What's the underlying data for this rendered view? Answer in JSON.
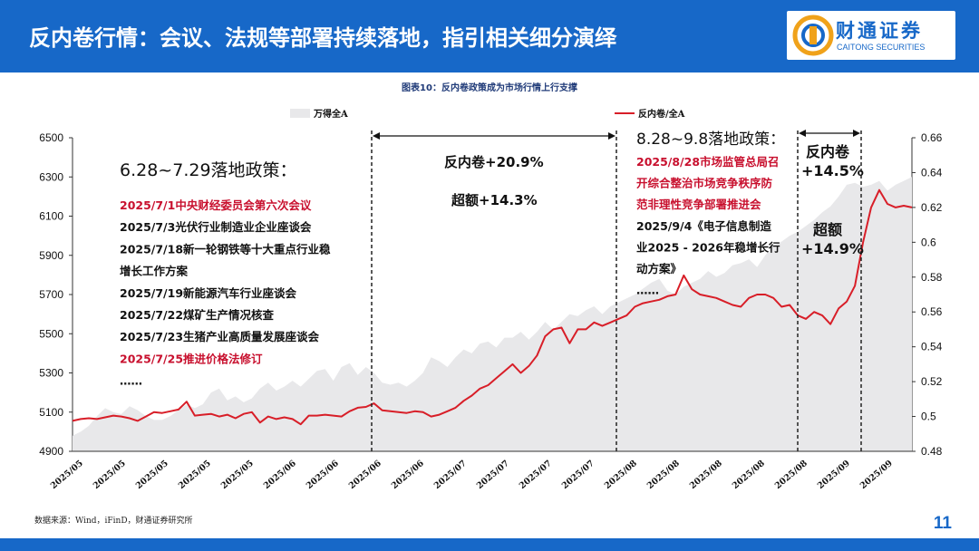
{
  "header": {
    "title": "反内卷行情：会议、法规等部署持续落地，指引相关细分演绎",
    "logo_name": "财通证券",
    "logo_sub": "CAITONG SECURITIES"
  },
  "figure_title": "图表10：反内卷政策成为市场行情上行支撑",
  "source": "数据来源：Wind，iFinD，财通证券研究所",
  "page_number": "11",
  "colors": {
    "brand": "#1768c8",
    "area": "#e8e8ea",
    "line": "#d81e28",
    "highlight": "#c8102e"
  },
  "annotations": {
    "left_title": "6.28~7.29落地政策：",
    "left_items": [
      {
        "text": "2025/7/1中央财经委员会第六次会议",
        "color": "red"
      },
      {
        "text": "2025/7/3光伏行业制造业企业座谈会",
        "color": "black"
      },
      {
        "text": "2025/7/18新一轮钢铁等十大重点行业稳",
        "color": "black"
      },
      {
        "text": "增长工作方案",
        "color": "black"
      },
      {
        "text": "2025/7/19新能源汽车行业座谈会",
        "color": "black"
      },
      {
        "text": "2025/7/22煤矿生产情况核查",
        "color": "black"
      },
      {
        "text": "2025/7/23生猪产业高质量发展座谈会",
        "color": "black"
      },
      {
        "text": "2025/7/25推进价格法修订",
        "color": "red"
      },
      {
        "text": "……",
        "color": "black"
      }
    ],
    "mid_label1": "反内卷+20.9%",
    "mid_label2": "超额+14.3%",
    "right_title": "8.28~9.8落地政策：",
    "right_items": [
      {
        "text": "2025/8/28市场监管总局召",
        "color": "red"
      },
      {
        "text": "开综合整治市场竞争秩序防",
        "color": "red"
      },
      {
        "text": "范非理性竞争部署推进会",
        "color": "red"
      },
      {
        "text": "2025/9/4《电子信息制造",
        "color": "black"
      },
      {
        "text": "业2025 - 2026年稳增长行",
        "color": "black"
      },
      {
        "text": "动方案》",
        "color": "black"
      },
      {
        "text": "……",
        "color": "black"
      }
    ],
    "far_label1": "反内卷",
    "far_label2": "+14.5%",
    "far_label3": "超额",
    "far_label4": "+14.9%"
  },
  "chart_data": {
    "type": "area+line",
    "legend": [
      "万得全A",
      "反内卷/全A"
    ],
    "y_left": {
      "min": 4900,
      "max": 6500,
      "ticks": [
        4900,
        5100,
        5300,
        5500,
        5700,
        5900,
        6100,
        6300,
        6500
      ]
    },
    "y_right": {
      "min": 0.48,
      "max": 0.66,
      "ticks": [
        0.48,
        0.5,
        0.52,
        0.54,
        0.56,
        0.58,
        0.6,
        0.62,
        0.64,
        0.66
      ]
    },
    "x_labels": [
      "2025/05",
      "2025/05",
      "2025/05",
      "2025/05",
      "2025/05",
      "2025/06",
      "2025/06",
      "2025/06",
      "2025/06",
      "2025/07",
      "2025/07",
      "2025/07",
      "2025/07",
      "2025/08",
      "2025/08",
      "2025/08",
      "2025/08",
      "2025/08",
      "2025/09",
      "2025/09"
    ],
    "series": [
      {
        "name": "万得全A",
        "axis": "left",
        "values": [
          4980,
          5000,
          5030,
          5080,
          5120,
          5100,
          5090,
          5130,
          5110,
          5080,
          5060,
          5060,
          5080,
          5110,
          5140,
          5120,
          5140,
          5200,
          5220,
          5160,
          5180,
          5150,
          5170,
          5220,
          5250,
          5210,
          5230,
          5260,
          5230,
          5270,
          5310,
          5320,
          5260,
          5330,
          5350,
          5290,
          5330,
          5300,
          5250,
          5240,
          5250,
          5230,
          5260,
          5300,
          5380,
          5360,
          5330,
          5380,
          5420,
          5400,
          5450,
          5460,
          5430,
          5480,
          5480,
          5510,
          5470,
          5510,
          5560,
          5520,
          5560,
          5600,
          5590,
          5620,
          5640,
          5600,
          5640,
          5660,
          5680,
          5700,
          5730,
          5760,
          5780,
          5720,
          5700,
          5740,
          5760,
          5780,
          5820,
          5790,
          5810,
          5850,
          5860,
          5880,
          5840,
          5900,
          5950,
          5970,
          6000,
          6020,
          6050,
          6080,
          6120,
          6150,
          6200,
          6260,
          6270,
          6250,
          6260,
          6280,
          6230,
          6260,
          6280,
          6300
        ]
      },
      {
        "name": "反内卷/全A",
        "axis": "right",
        "values": [
          0.4975,
          0.4985,
          0.499,
          0.4985,
          0.4995,
          0.5005,
          0.5,
          0.499,
          0.4975,
          0.5,
          0.5025,
          0.502,
          0.503,
          0.504,
          0.5085,
          0.5005,
          0.501,
          0.5015,
          0.5,
          0.501,
          0.499,
          0.5015,
          0.5025,
          0.4965,
          0.5,
          0.4985,
          0.4995,
          0.4985,
          0.4955,
          0.5005,
          0.5005,
          0.501,
          0.5005,
          0.5,
          0.503,
          0.505,
          0.5055,
          0.5075,
          0.5035,
          0.503,
          0.5025,
          0.502,
          0.503,
          0.5025,
          0.5,
          0.501,
          0.503,
          0.505,
          0.509,
          0.512,
          0.516,
          0.518,
          0.522,
          0.526,
          0.53,
          0.525,
          0.529,
          0.535,
          0.546,
          0.55,
          0.551,
          0.542,
          0.55,
          0.55,
          0.554,
          0.552,
          0.554,
          0.556,
          0.558,
          0.563,
          0.565,
          0.566,
          0.567,
          0.569,
          0.57,
          0.581,
          0.573,
          0.57,
          0.569,
          0.568,
          0.566,
          0.564,
          0.563,
          0.568,
          0.57,
          0.57,
          0.568,
          0.563,
          0.564,
          0.558,
          0.556,
          0.56,
          0.558,
          0.553,
          0.562,
          0.566,
          0.575,
          0.6,
          0.62,
          0.63,
          0.622,
          0.62,
          0.621,
          0.62
        ]
      }
    ]
  }
}
